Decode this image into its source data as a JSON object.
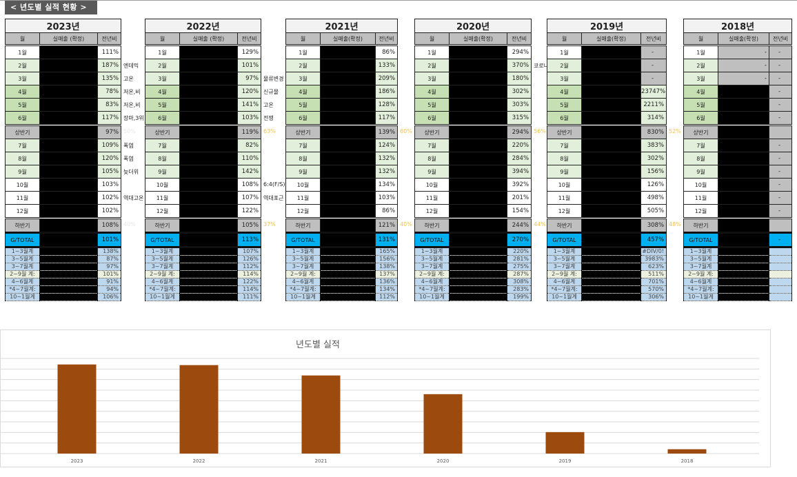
{
  "page_title": "< 년도별 실적 현황 >",
  "colors": {
    "title_bar": "#595959",
    "month_white": "#ffffff",
    "month_light_green": "#e2efda",
    "month_green": "#c6e0b4",
    "half_gray": "#bfbfbf",
    "total_blue": "#00b0f0",
    "sum_blue": "#bdd7ee",
    "note_yellow": "#f5c04a",
    "note_faint": "#e6e6e6",
    "bar": "#9c4a0e"
  },
  "years": [
    {
      "title": "2023년",
      "headers": [
        "월",
        "실매출 (확정)",
        "전년비"
      ],
      "note_color": "#e6e6e6",
      "months": [
        [
          "1월",
          "111%",
          ""
        ],
        [
          "2월",
          "187%",
          "엔데믹"
        ],
        [
          "3월",
          "135%",
          "고온"
        ],
        [
          "4월",
          "78%",
          "저온,비"
        ],
        [
          "5월",
          "83%",
          "저온,비"
        ],
        [
          "6월",
          "117%",
          "장마,3위"
        ],
        [
          "7월",
          "109%",
          "폭염"
        ],
        [
          "8월",
          "120%",
          "폭염"
        ],
        [
          "9월",
          "105%",
          "늦더위"
        ],
        [
          "10월",
          "103%",
          ""
        ],
        [
          "11월",
          "102%",
          "역대고온"
        ],
        [
          "12월",
          "102%",
          ""
        ]
      ],
      "h1": [
        "상반기",
        "97%",
        "50%"
      ],
      "h2": [
        "하반기",
        "108%",
        "40%"
      ],
      "total": [
        "G/TOTAL",
        "101%"
      ],
      "sums": [
        [
          "1~3월계",
          "138%"
        ],
        [
          "3~5월계",
          "87%"
        ],
        [
          "3~7월계",
          "97%"
        ],
        [
          "2~9월 계:",
          "101%"
        ],
        [
          "4~6월계",
          "91%"
        ],
        [
          "*4~7월계:",
          "94%"
        ],
        [
          "10~1월계",
          "106%"
        ]
      ]
    },
    {
      "title": "2022년",
      "headers": [
        "월",
        "실매출 (확정)",
        "전년비"
      ],
      "note_color": "#f5c04a",
      "months": [
        [
          "1월",
          "129%",
          ""
        ],
        [
          "2월",
          "101%",
          ""
        ],
        [
          "3월",
          "97%",
          "물류변경"
        ],
        [
          "4월",
          "120%",
          "신규몰"
        ],
        [
          "5월",
          "141%",
          "고온"
        ],
        [
          "6월",
          "103%",
          "전쟁"
        ],
        [
          "7월",
          "82%",
          ""
        ],
        [
          "8월",
          "110%",
          ""
        ],
        [
          "9월",
          "142%",
          ""
        ],
        [
          "10월",
          "108%",
          "6:4(F/S)"
        ],
        [
          "11월",
          "107%",
          "역대포근"
        ],
        [
          "12월",
          "122%",
          ""
        ]
      ],
      "h1": [
        "상반기",
        "119%",
        "63%"
      ],
      "h2": [
        "하반기",
        "105%",
        "37%"
      ],
      "total": [
        "G/TOTAL",
        "113%"
      ],
      "sums": [
        [
          "1~3월계",
          "107%"
        ],
        [
          "3~5월계",
          "126%"
        ],
        [
          "3~7월계",
          "112%"
        ],
        [
          "2~9월 계:",
          "114%"
        ],
        [
          "4~6월계",
          "122%"
        ],
        [
          "*4~7월계:",
          "114%"
        ],
        [
          "10~1월계",
          "111%"
        ]
      ]
    },
    {
      "title": "2021년",
      "headers": [
        "월",
        "실매출(확정)",
        "전년비"
      ],
      "note_color": "#f5c04a",
      "months": [
        [
          "1월",
          "86%",
          ""
        ],
        [
          "2월",
          "133%",
          ""
        ],
        [
          "3월",
          "209%",
          ""
        ],
        [
          "4월",
          "186%",
          ""
        ],
        [
          "5월",
          "128%",
          ""
        ],
        [
          "6월",
          "117%",
          ""
        ],
        [
          "7월",
          "124%",
          ""
        ],
        [
          "8월",
          "132%",
          ""
        ],
        [
          "9월",
          "132%",
          ""
        ],
        [
          "10월",
          "134%",
          ""
        ],
        [
          "11월",
          "103%",
          ""
        ],
        [
          "12월",
          "86%",
          ""
        ]
      ],
      "h1": [
        "상반기",
        "139%",
        "60%"
      ],
      "h2": [
        "하반기",
        "121%",
        "40%"
      ],
      "total": [
        "G/TOTAL",
        "131%"
      ],
      "sums": [
        [
          "1~3월계",
          "165%"
        ],
        [
          "3~5월계",
          "156%"
        ],
        [
          "3~7월계",
          "138%"
        ],
        [
          "2~9월 계:",
          "137%"
        ],
        [
          "4~6월계",
          "136%"
        ],
        [
          "*4~7월계:",
          "134%"
        ],
        [
          "10~1월계",
          "112%"
        ]
      ]
    },
    {
      "title": "2020년",
      "headers": [
        "월",
        "실매출(확정)",
        "전년비"
      ],
      "note_color": "#f5c04a",
      "months": [
        [
          "1월",
          "294%",
          ""
        ],
        [
          "2월",
          "370%",
          "코로나"
        ],
        [
          "3월",
          "180%",
          ""
        ],
        [
          "4월",
          "302%",
          ""
        ],
        [
          "5월",
          "303%",
          ""
        ],
        [
          "6월",
          "315%",
          ""
        ],
        [
          "7월",
          "220%",
          ""
        ],
        [
          "8월",
          "284%",
          ""
        ],
        [
          "9월",
          "394%",
          ""
        ],
        [
          "10월",
          "392%",
          ""
        ],
        [
          "11월",
          "201%",
          ""
        ],
        [
          "12월",
          "154%",
          ""
        ]
      ],
      "h1": [
        "상반기",
        "294%",
        "56%"
      ],
      "h2": [
        "하반기",
        "244%",
        "44%"
      ],
      "total": [
        "G/TOTAL",
        "270%"
      ],
      "sums": [
        [
          "1~3월계",
          "220%"
        ],
        [
          "3~5월계",
          "281%"
        ],
        [
          "3~7월계",
          "275%"
        ],
        [
          "2~9월 계:",
          "287%"
        ],
        [
          "4~6월계",
          "308%"
        ],
        [
          "*4~7월계:",
          "283%"
        ],
        [
          "10~1월계",
          "199%"
        ]
      ]
    },
    {
      "title": "2019년",
      "headers": [
        "월",
        "실매출(확정)",
        "전년비"
      ],
      "note_color": "#f5c04a",
      "months": [
        [
          "1월",
          "-",
          ""
        ],
        [
          "2월",
          "-",
          ""
        ],
        [
          "3월",
          "-",
          ""
        ],
        [
          "4월",
          "23747%",
          ""
        ],
        [
          "5월",
          "2211%",
          ""
        ],
        [
          "6월",
          "314%",
          ""
        ],
        [
          "7월",
          "383%",
          ""
        ],
        [
          "8월",
          "302%",
          ""
        ],
        [
          "9월",
          "156%",
          ""
        ],
        [
          "10월",
          "126%",
          ""
        ],
        [
          "11월",
          "498%",
          ""
        ],
        [
          "12월",
          "505%",
          ""
        ]
      ],
      "h1": [
        "상반기",
        "830%",
        "52%"
      ],
      "h2": [
        "하반기",
        "308%",
        "48%"
      ],
      "total": [
        "G/TOTAL",
        "457%"
      ],
      "sums": [
        [
          "1~3월계",
          "#DIV/0!"
        ],
        [
          "3~5월계",
          "3983%"
        ],
        [
          "3~7월계",
          "623%"
        ],
        [
          "2~9월 계:",
          "511%"
        ],
        [
          "4~6월계",
          "701%"
        ],
        [
          "*4~7월계:",
          "570%"
        ],
        [
          "10~1월계",
          "306%"
        ]
      ]
    },
    {
      "title": "2018년",
      "headers": [
        "월",
        "실매출(확정)",
        "전년비"
      ],
      "note_color": "#f5c04a",
      "sales_dash_rows": 3,
      "sales_dash": "-",
      "months": [
        [
          "1월",
          "-",
          ""
        ],
        [
          "2월",
          "-",
          ""
        ],
        [
          "3월",
          "-",
          ""
        ],
        [
          "4월",
          "-",
          ""
        ],
        [
          "5월",
          "-",
          ""
        ],
        [
          "6월",
          "-",
          ""
        ],
        [
          "7월",
          "-",
          ""
        ],
        [
          "8월",
          "-",
          ""
        ],
        [
          "9월",
          "-",
          ""
        ],
        [
          "10월",
          "-",
          ""
        ],
        [
          "11월",
          "-",
          ""
        ],
        [
          "12월",
          "-",
          ""
        ]
      ],
      "h1": [
        "상반기",
        "",
        ""
      ],
      "h2": [
        "하반기",
        "",
        ""
      ],
      "total": [
        "G/TOTAL",
        "-"
      ],
      "sums": [
        [
          "1~3월계",
          ""
        ],
        [
          "3~5월계",
          ""
        ],
        [
          "3~7월계",
          ""
        ],
        [
          "2~9월 계:",
          ""
        ],
        [
          "4~6월계",
          ""
        ],
        [
          "*4~7월계:",
          ""
        ],
        [
          "10~1월계",
          ""
        ]
      ]
    }
  ],
  "chart_data": {
    "type": "bar",
    "title": "년도별 실적",
    "categories": [
      "2023",
      "2022",
      "2021",
      "2020",
      "2019",
      "2018"
    ],
    "values": [
      8.43,
      8.37,
      7.39,
      5.62,
      2.03,
      0.41
    ],
    "ylim": [
      0,
      9
    ],
    "y_tick_labels_shown": false,
    "grid": true,
    "legend": "none"
  }
}
